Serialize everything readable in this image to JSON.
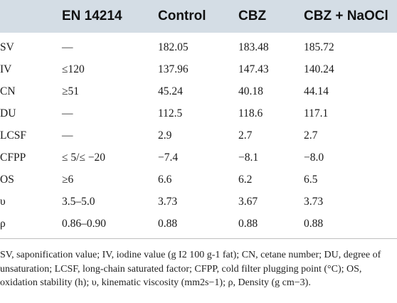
{
  "table": {
    "headers": [
      "",
      "EN 14214",
      "Control",
      "CBZ",
      "CBZ + NaOCl"
    ],
    "rows": [
      [
        "SV",
        "—",
        "182.05",
        "183.48",
        "185.72"
      ],
      [
        "IV",
        "≤120",
        "137.96",
        "147.43",
        "140.24"
      ],
      [
        "CN",
        "≥51",
        "45.24",
        "40.18",
        "44.14"
      ],
      [
        "DU",
        "—",
        "112.5",
        "118.6",
        "117.1"
      ],
      [
        "LCSF",
        "—",
        "2.9",
        "2.7",
        "2.7"
      ],
      [
        "CFPP",
        "≤ 5/≤ −20",
        "−7.4",
        "−8.1",
        "−8.0"
      ],
      [
        "OS",
        "≥6",
        "6.6",
        "6.2",
        "6.5"
      ],
      [
        "υ",
        "3.5–5.0",
        "3.73",
        "3.67",
        "3.73"
      ],
      [
        "ρ",
        "0.86–0.90",
        "0.88",
        "0.88",
        "0.88"
      ]
    ]
  },
  "footnote": "SV, saponification value; IV, iodine value (g I2 100 g-1 fat); CN, cetane number; DU, degree of unsaturation; LCSF, long-chain saturated factor; CFPP, cold filter plugging point (°C); OS, oxidation stability (h); υ, kinematic viscosity (mm2s−1); ρ, Density (g cm−3).",
  "colors": {
    "header_background": "#d4dde5",
    "rule": "#bfbfbf"
  }
}
